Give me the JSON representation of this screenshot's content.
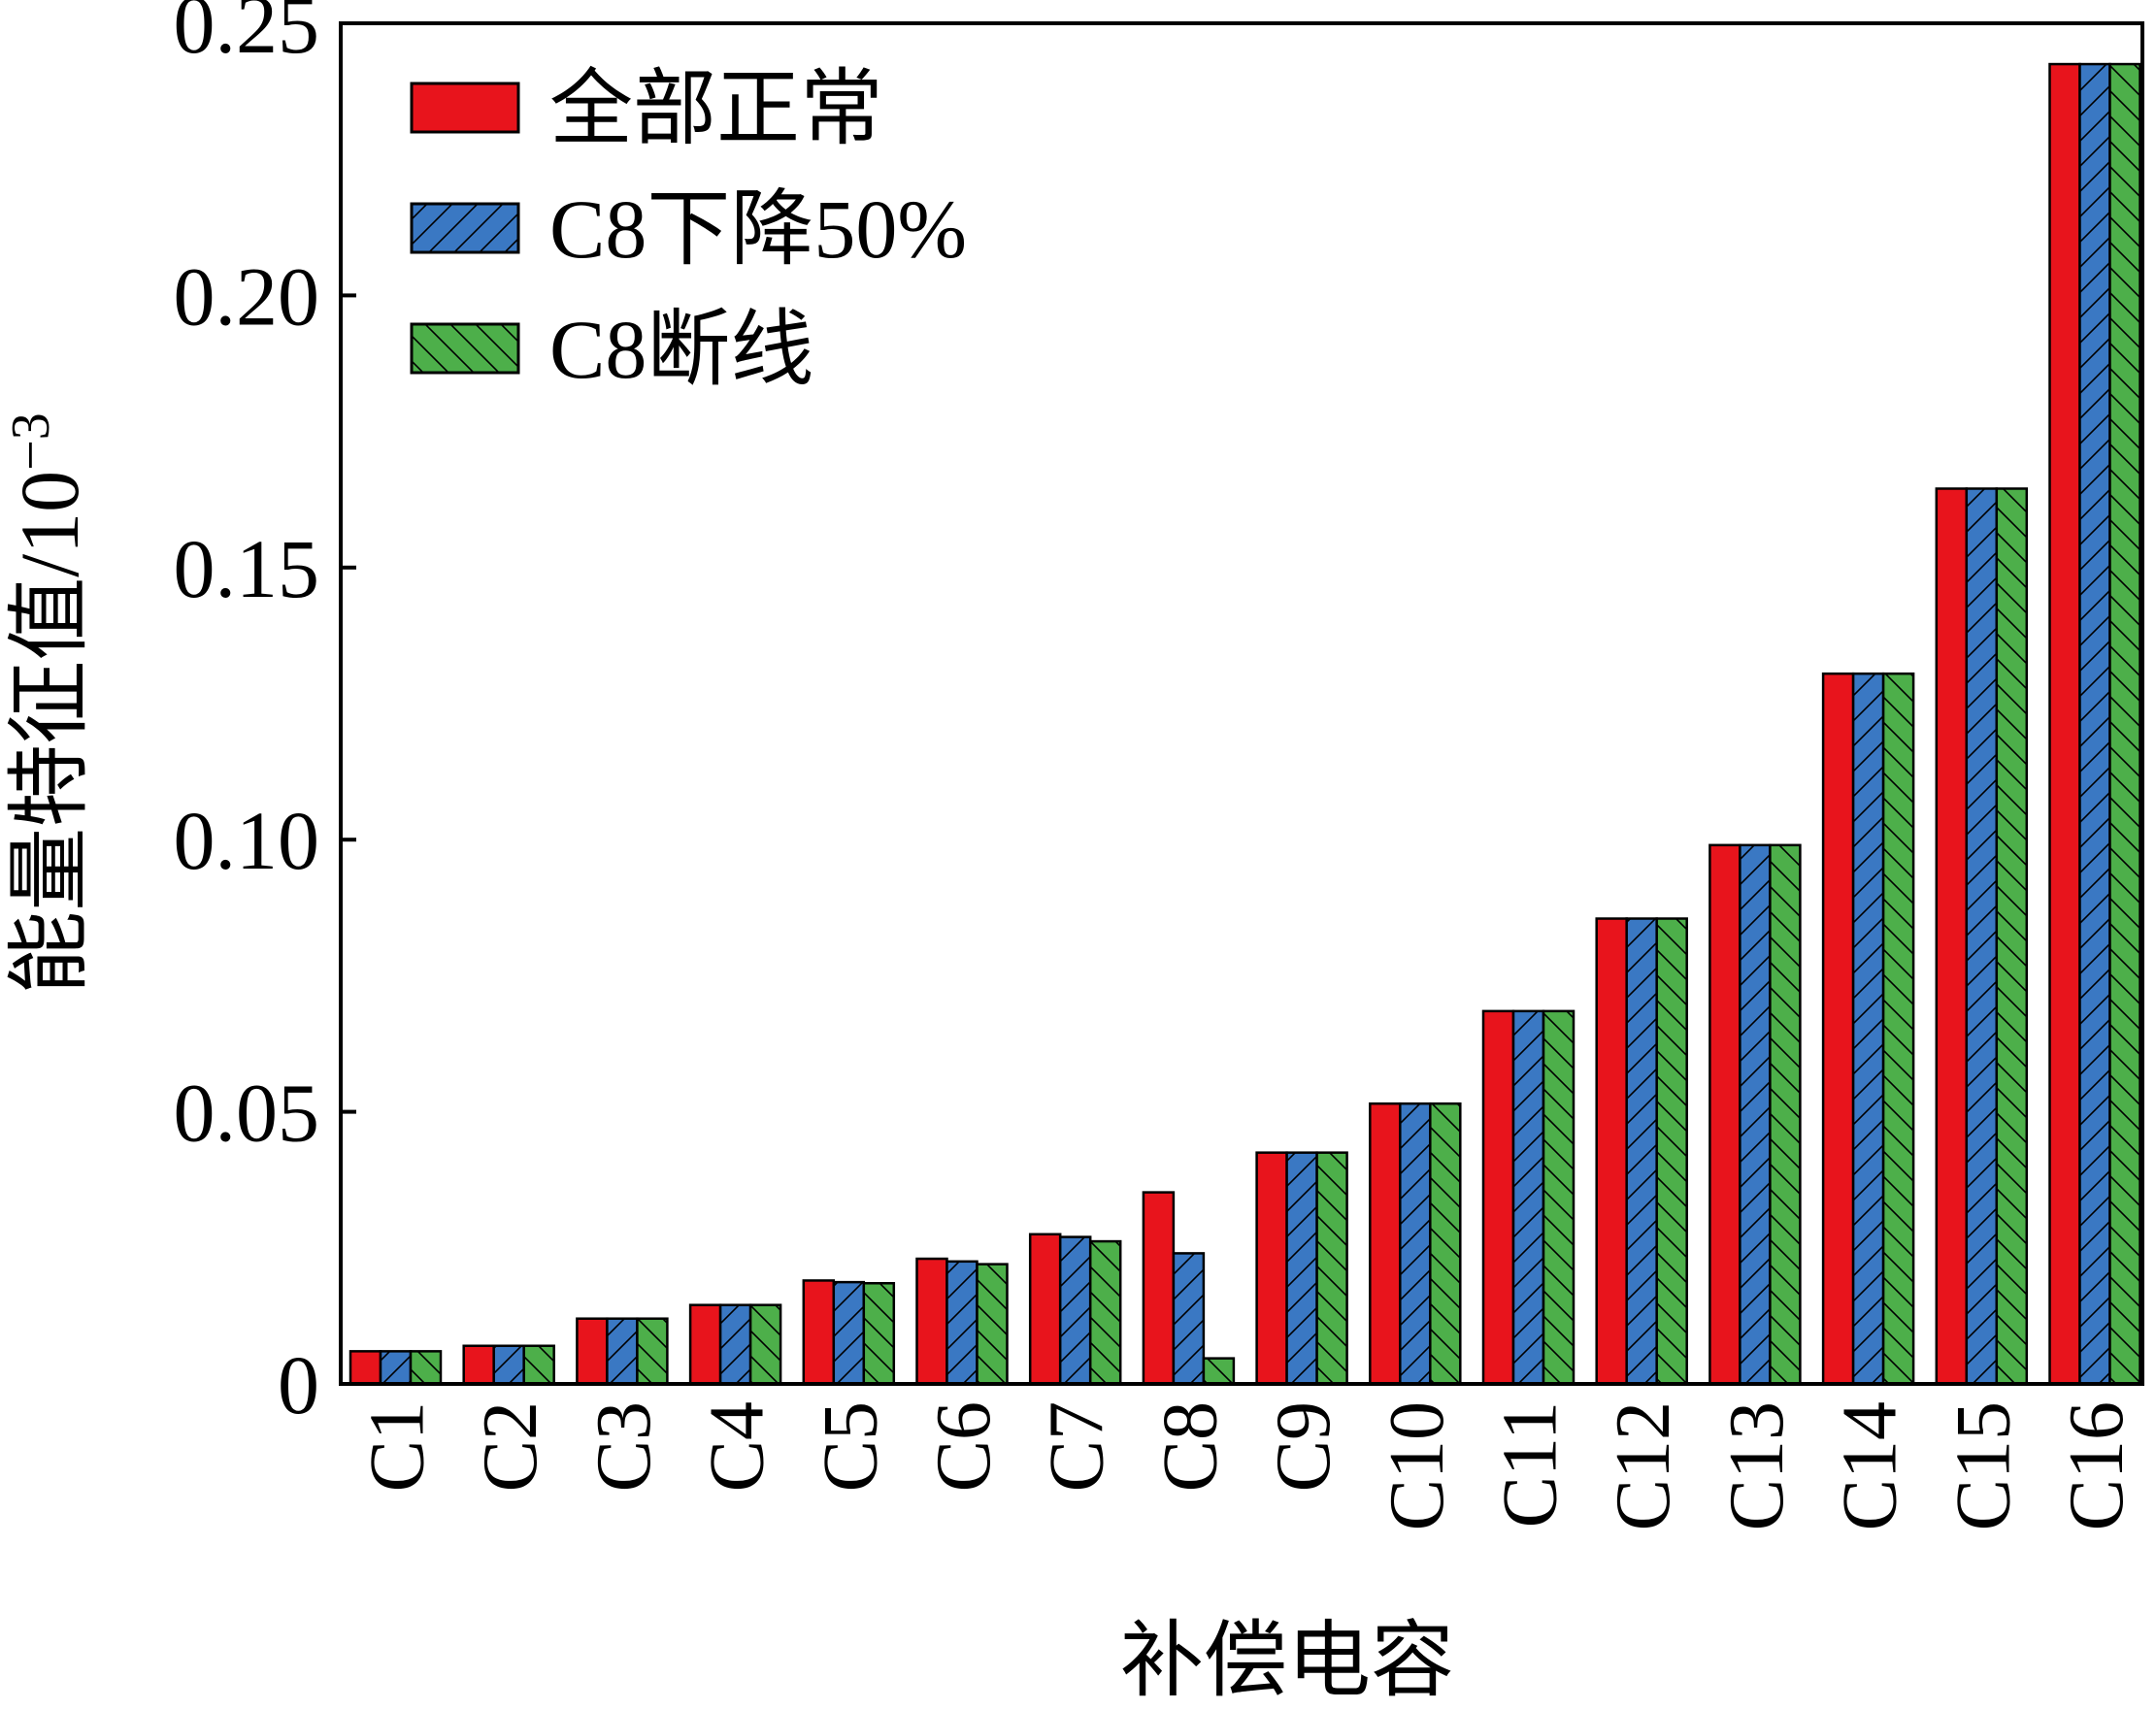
{
  "chart_data": {
    "type": "bar",
    "title": "",
    "xlabel": "补偿电容",
    "ylabel": "能量特征值/10",
    "ylabel_superscript": "−3",
    "ylim": [
      0,
      0.25
    ],
    "yticks": [
      0,
      0.05,
      0.1,
      0.15,
      0.2,
      0.25
    ],
    "ytick_labels": [
      "0",
      "0.05",
      "0.10",
      "0.15",
      "0.20",
      "0.25"
    ],
    "categories": [
      "C1",
      "C2",
      "C3",
      "C4",
      "C5",
      "C6",
      "C7",
      "C8",
      "C9",
      "C10",
      "C11",
      "C12",
      "C13",
      "C14",
      "C15",
      "C16"
    ],
    "series": [
      {
        "name": "全部正常",
        "color": "#e8141c",
        "pattern": "none",
        "values": [
          0.006,
          0.007,
          0.012,
          0.0145,
          0.019,
          0.023,
          0.0275,
          0.0352,
          0.0425,
          0.0515,
          0.0685,
          0.0855,
          0.099,
          0.1305,
          0.1645,
          0.2425
        ]
      },
      {
        "name": "C8下降50%",
        "color": "#3a78c3",
        "pattern": "hatch-forward",
        "values": [
          0.006,
          0.007,
          0.012,
          0.0145,
          0.0187,
          0.0225,
          0.027,
          0.024,
          0.0425,
          0.0515,
          0.0685,
          0.0855,
          0.099,
          0.1305,
          0.1645,
          0.2425
        ]
      },
      {
        "name": "C8断线",
        "color": "#4daf4a",
        "pattern": "hatch-back",
        "values": [
          0.006,
          0.007,
          0.012,
          0.0145,
          0.0185,
          0.022,
          0.0262,
          0.0047,
          0.0425,
          0.0515,
          0.0685,
          0.0855,
          0.099,
          0.1305,
          0.1645,
          0.2425
        ]
      }
    ],
    "legend_position": "top-left",
    "grid": false
  }
}
